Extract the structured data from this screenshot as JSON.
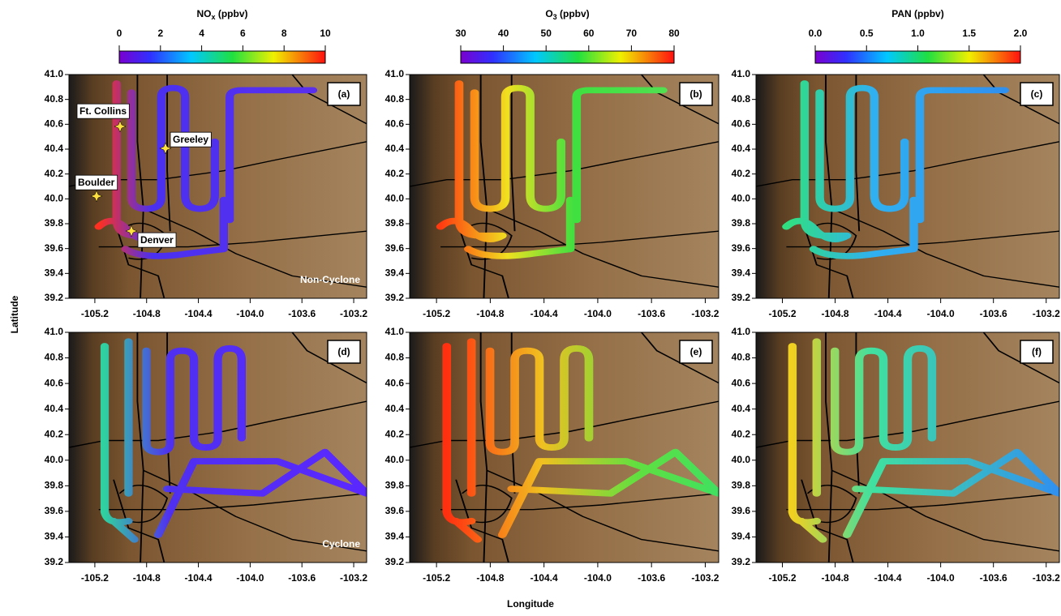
{
  "colorbars": [
    {
      "title": {
        "species": "NO",
        "subscript": "x",
        "unit": " (ppbv)"
      },
      "lim": [
        0,
        10
      ],
      "ticks": [
        0,
        2,
        4,
        6,
        8,
        10
      ]
    },
    {
      "title": {
        "species": "O",
        "subscript": "3",
        "unit": " (ppbv)"
      },
      "lim": [
        30,
        80
      ],
      "ticks": [
        30,
        40,
        50,
        60,
        70,
        80
      ]
    },
    {
      "title": {
        "species": "PAN",
        "subscript": "",
        "unit": " (ppbv)"
      },
      "lim": [
        0,
        2
      ],
      "ticks": [
        {
          "value": 0,
          "label": "0.0"
        },
        0.5,
        {
          "value": 1,
          "label": "1.0"
        },
        1.5,
        {
          "value": 2,
          "label": "2.0"
        }
      ]
    }
  ],
  "panels": [
    {
      "label": "(a)",
      "regime": "Non-Cyclone"
    },
    {
      "label": "(b)"
    },
    {
      "label": "(c)"
    },
    {
      "label": "(d)",
      "regime": "Cyclone"
    },
    {
      "label": "(e)"
    },
    {
      "label": "(f)"
    }
  ],
  "cities": [
    "Ft. Collins",
    "Greeley",
    "Boulder",
    "Denver"
  ],
  "xaxis": {
    "label": "Longitude",
    "xlim": [
      -105.4,
      -103.1
    ],
    "xticks": [
      -105.2,
      -104.8,
      -104.4,
      {
        "value": -104,
        "label": "-104.0"
      },
      -103.6,
      -103.2
    ]
  },
  "yaxis": {
    "label": "Latitude",
    "ylim": [
      39.2,
      41.0
    ],
    "yticks": [
      39.2,
      39.4,
      39.6,
      39.8,
      {
        "value": 40,
        "label": "40.0"
      },
      40.2,
      40.4,
      40.6,
      40.8,
      {
        "value": 41,
        "label": "41.0"
      }
    ]
  }
}
